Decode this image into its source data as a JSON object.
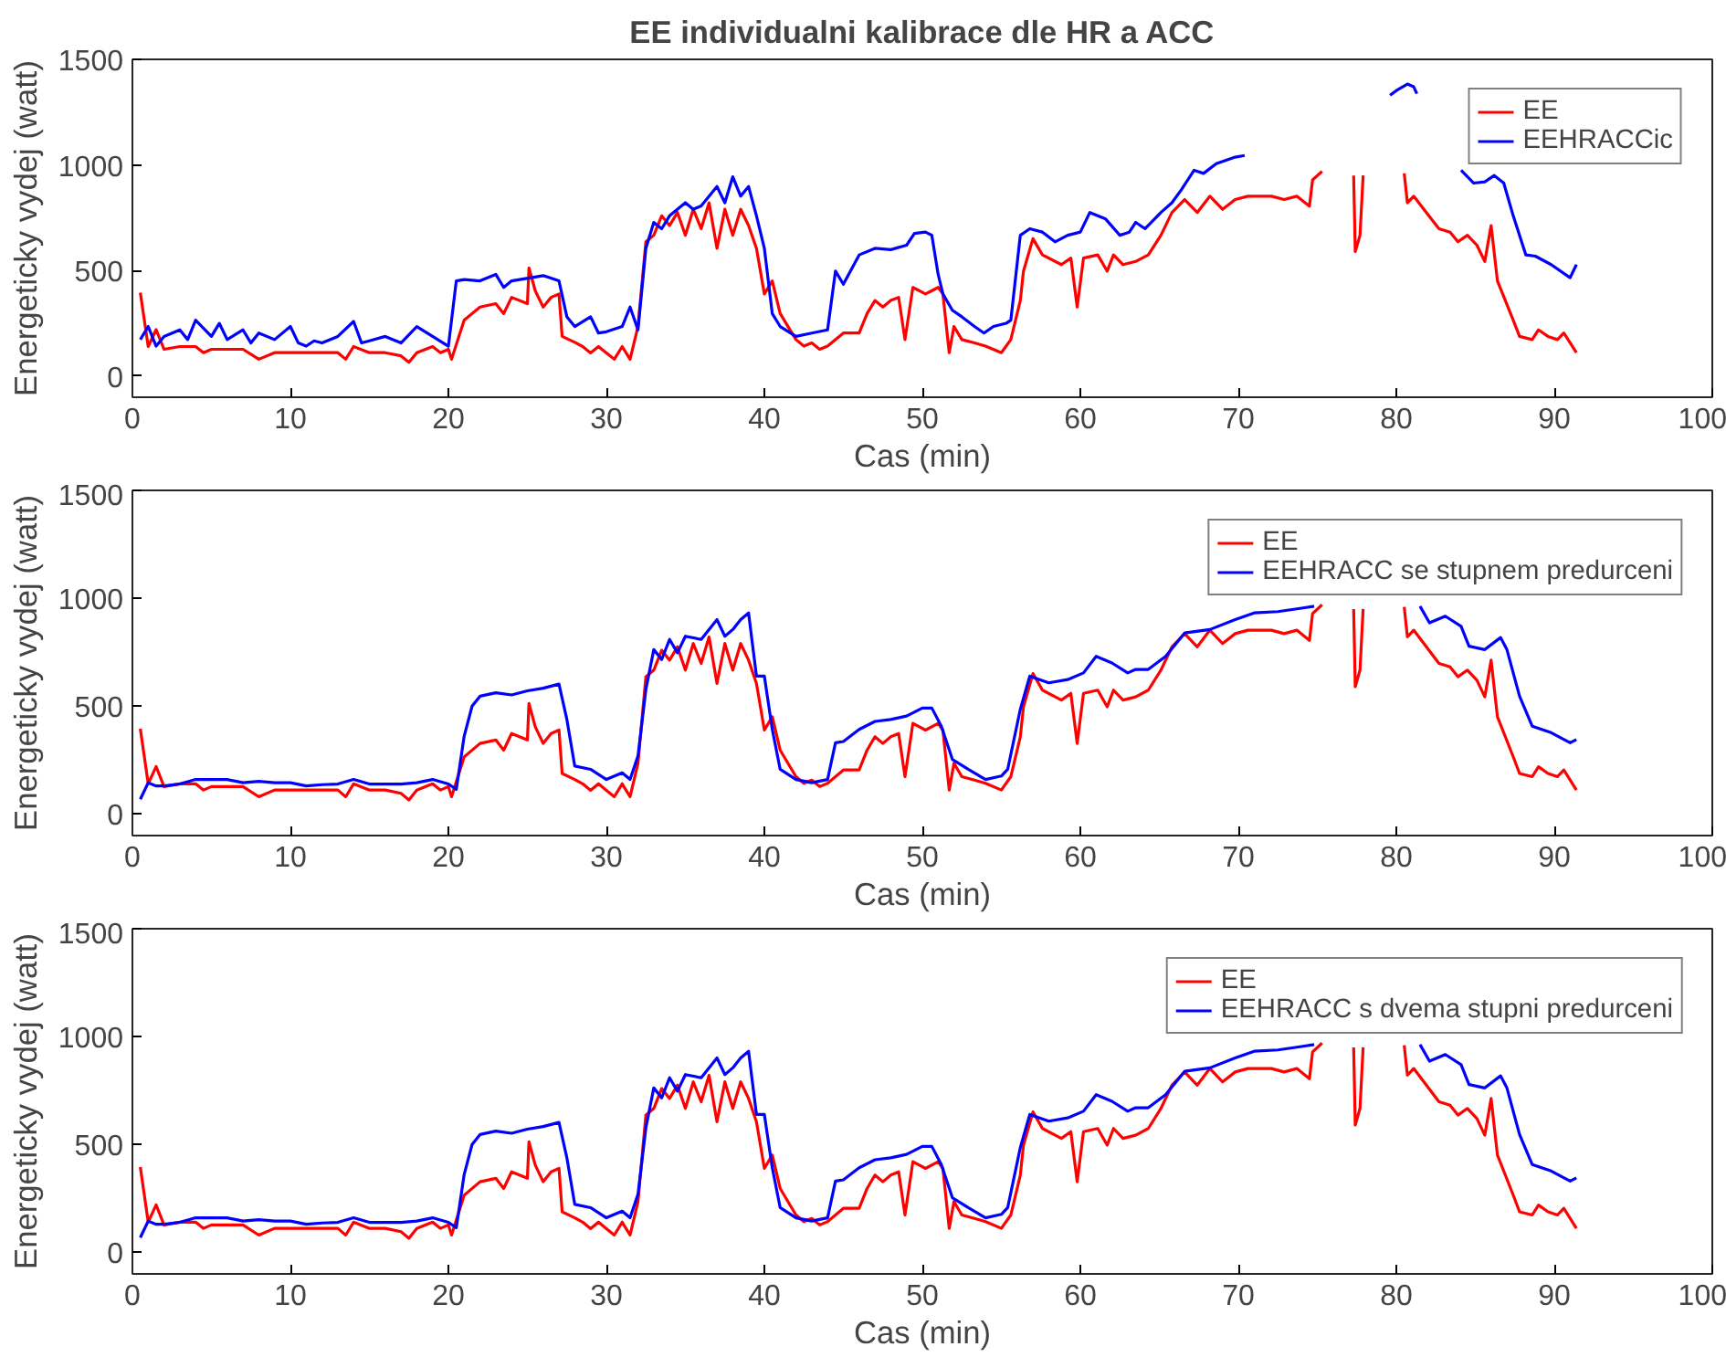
{
  "chart_data": [
    {
      "type": "line",
      "title": "EE individualni kalibrace dle HR a ACC",
      "xlabel": "Cas (min)",
      "ylabel": "Energeticky vydej (watt)",
      "xlim": [
        0,
        100
      ],
      "ylim": [
        -100,
        1500
      ],
      "xticks": [
        0,
        10,
        20,
        30,
        40,
        50,
        60,
        70,
        80,
        90,
        100
      ],
      "yticks": [
        0,
        500,
        1000,
        1500
      ],
      "legend": "top right",
      "series": [
        {
          "name": "EE",
          "color": "#ff0000",
          "x": [
            0.5,
            1,
            1.5,
            2,
            3,
            4,
            4.5,
            5,
            6,
            7,
            8,
            9,
            10,
            11,
            12,
            13,
            13.5,
            14,
            15,
            16,
            17,
            17.5,
            18,
            19,
            19.5,
            20,
            20.2,
            21,
            22,
            23,
            23.5,
            24,
            25,
            25.1,
            25.5,
            26,
            26.5,
            27,
            27.2,
            28,
            28.5,
            29,
            29.5,
            30,
            30.5,
            31,
            31.5,
            32,
            32.5,
            33,
            33.5,
            34,
            34.5,
            35,
            35.5,
            36,
            36.5,
            37,
            37.5,
            38,
            38.5,
            39,
            39.5,
            40,
            40.5,
            41,
            42,
            42.5,
            43,
            43.5,
            44,
            45,
            46,
            46.5,
            47,
            47.5,
            48,
            48.5,
            48.9,
            49.4,
            50.2,
            51,
            51.3,
            51.7,
            52,
            52.5,
            53.3,
            54,
            55,
            55.6,
            56.2,
            56.4,
            57,
            57.6,
            58.8,
            59.4,
            59.8,
            60.2,
            61.1,
            61.7,
            62.1,
            62.7,
            63.5,
            64.3,
            65.1,
            65.8,
            66.6,
            67.4,
            68.2,
            69,
            69.8,
            70.6,
            72.1,
            72.9,
            73.7,
            74.5,
            74.7,
            75.3,
            76,
            77.3,
            77.4,
            77.7,
            77.9,
            79,
            80.5,
            80.7,
            81.1,
            81.9,
            82.7,
            83.4,
            83.9,
            84.5,
            85.1,
            85.6,
            86,
            86.4,
            87.4,
            87.8,
            88.6,
            89,
            89.6,
            90.2,
            90.6,
            91.4
          ],
          "values": [
            395,
            140,
            220,
            127,
            140,
            140,
            111,
            127,
            127,
            127,
            80,
            111,
            111,
            111,
            111,
            111,
            80,
            140,
            111,
            111,
            96,
            65,
            111,
            140,
            111,
            127,
            80,
            265,
            327,
            343,
            296,
            373,
            343,
            512,
            404,
            327,
            373,
            389,
            188,
            160,
            140,
            110,
            140,
            110,
            80,
            140,
            80,
            235,
            636,
            667,
            759,
            713,
            775,
            667,
            790,
            698,
            821,
            605,
            790,
            667,
            790,
            713,
            605,
            389,
            451,
            296,
            173,
            142,
            157,
            127,
            142,
            204,
            204,
            296,
            358,
            327,
            358,
            373,
            173,
            420,
            389,
            420,
            389,
            111,
            235,
            173,
            157,
            142,
            111,
            173,
            358,
            497,
            651,
            574,
            528,
            559,
            327,
            559,
            574,
            497,
            574,
            528,
            543,
            574,
            667,
            775,
            836,
            775,
            852,
            790,
            836,
            852,
            852,
            836,
            852,
            805,
            929,
            970,
            null,
            950,
            590,
            667,
            950,
            null,
            960,
            821,
            852,
            775,
            698,
            682,
            636,
            667,
            620,
            543,
            713,
            451,
            265,
            188,
            173,
            219,
            188,
            173,
            204,
            111
          ]
        },
        {
          "name": "EEHRACCic",
          "color": "#0000ff",
          "x": [
            0.5,
            1,
            1.5,
            2,
            3,
            3.5,
            4,
            5,
            5.5,
            6,
            7,
            7.5,
            8,
            9,
            10,
            10.5,
            11,
            11.5,
            12,
            13,
            14,
            14.5,
            15,
            16,
            17,
            18,
            19,
            20,
            20.5,
            21,
            22,
            23,
            23.5,
            24,
            26,
            27,
            27.5,
            28,
            29,
            29.5,
            30,
            31,
            31.5,
            32,
            32.5,
            33,
            33.5,
            34,
            35,
            35.5,
            36,
            37,
            37.5,
            38,
            38.5,
            39,
            39.5,
            40,
            40.5,
            41,
            42,
            43,
            44,
            44.5,
            45,
            46,
            47,
            48,
            49,
            49.5,
            50.2,
            50.6,
            51,
            51.3,
            51.9,
            52.5,
            53.3,
            53.9,
            54.5,
            55.3,
            55.6,
            56.2,
            56.8,
            57.6,
            58.4,
            59.2,
            60,
            60.6,
            61.6,
            62.5,
            63.1,
            63.5,
            64.1,
            65.1,
            65.8,
            66.4,
            67.2,
            67.8,
            68.6,
            69.8,
            70.4,
            72,
            79.6,
            80,
            80.7,
            81.1,
            81.3,
            82,
            84.1,
            84.9,
            85.6,
            86.2,
            86.8,
            87.4,
            88.2,
            88.8,
            89.8,
            91,
            91.4
          ],
          "values": [
            173,
            235,
            142,
            188,
            219,
            173,
            265,
            188,
            250,
            173,
            219,
            157,
            204,
            173,
            235,
            157,
            142,
            167,
            157,
            188,
            259,
            157,
            167,
            188,
            157,
            235,
            188,
            142,
            451,
            457,
            451,
            482,
            420,
            451,
            476,
            451,
            281,
            235,
            281,
            204,
            210,
            235,
            327,
            219,
            605,
            728,
            698,
            759,
            821,
            790,
            806,
            898,
            821,
            944,
            852,
            898,
            759,
            605,
            296,
            235,
            188,
            204,
            219,
            497,
            435,
            574,
            605,
            599,
            620,
            676,
            682,
            667,
            482,
            389,
            312,
            281,
            235,
            204,
            235,
            250,
            265,
            667,
            698,
            682,
            636,
            667,
            682,
            775,
            744,
            667,
            682,
            728,
            698,
            775,
            821,
            883,
            975,
            960,
            1006,
            1037,
            1045,
            null,
            1330,
            1352,
            1383,
            1370,
            1337,
            null,
            975,
            914,
            920,
            950,
            914,
            759,
            574,
            568,
            528,
            466,
            528
          ]
        }
      ]
    },
    {
      "type": "line",
      "xlabel": "Cas (min)",
      "ylabel": "Energeticky vydej (watt)",
      "xlim": [
        0,
        100
      ],
      "ylim": [
        -100,
        1500
      ],
      "xticks": [
        0,
        10,
        20,
        30,
        40,
        50,
        60,
        70,
        80,
        90,
        100
      ],
      "yticks": [
        0,
        500,
        1000,
        1500
      ],
      "legend": "top right",
      "series": [
        {
          "name": "EE",
          "color": "#ff0000",
          "x": [
            0.5,
            1,
            1.5,
            2,
            3,
            4,
            4.5,
            5,
            6,
            7,
            8,
            9,
            10,
            11,
            12,
            13,
            13.5,
            14,
            15,
            16,
            17,
            17.5,
            18,
            19,
            19.5,
            20,
            20.2,
            21,
            22,
            23,
            23.5,
            24,
            25,
            25.1,
            25.5,
            26,
            26.5,
            27,
            27.2,
            28,
            28.5,
            29,
            29.5,
            30,
            30.5,
            31,
            31.5,
            32,
            32.5,
            33,
            33.5,
            34,
            34.5,
            35,
            35.5,
            36,
            36.5,
            37,
            37.5,
            38,
            38.5,
            39,
            39.5,
            40,
            40.5,
            41,
            42,
            42.5,
            43,
            43.5,
            44,
            45,
            46,
            46.5,
            47,
            47.5,
            48,
            48.5,
            48.9,
            49.4,
            50.2,
            51,
            51.3,
            51.7,
            52,
            52.5,
            53.3,
            54,
            55,
            55.6,
            56.2,
            56.4,
            57,
            57.6,
            58.8,
            59.4,
            59.8,
            60.2,
            61.1,
            61.7,
            62.1,
            62.7,
            63.5,
            64.3,
            65.1,
            65.8,
            66.6,
            67.4,
            68.2,
            69,
            69.8,
            70.6,
            72.1,
            72.9,
            73.7,
            74.5,
            74.7,
            75.3,
            76,
            77.3,
            77.4,
            77.7,
            77.9,
            79,
            80.5,
            80.7,
            81.1,
            81.9,
            82.7,
            83.4,
            83.9,
            84.5,
            85.1,
            85.6,
            86,
            86.4,
            87.4,
            87.8,
            88.6,
            89,
            89.6,
            90.2,
            90.6,
            91.4
          ],
          "values": [
            395,
            140,
            220,
            127,
            140,
            140,
            111,
            127,
            127,
            127,
            80,
            111,
            111,
            111,
            111,
            111,
            80,
            140,
            111,
            111,
            96,
            65,
            111,
            140,
            111,
            127,
            80,
            265,
            327,
            343,
            296,
            373,
            343,
            512,
            404,
            327,
            373,
            389,
            188,
            160,
            140,
            110,
            140,
            110,
            80,
            140,
            80,
            235,
            636,
            667,
            759,
            713,
            775,
            667,
            790,
            698,
            821,
            605,
            790,
            667,
            790,
            713,
            605,
            389,
            451,
            296,
            173,
            142,
            157,
            127,
            142,
            204,
            204,
            296,
            358,
            327,
            358,
            373,
            173,
            420,
            389,
            420,
            389,
            111,
            235,
            173,
            157,
            142,
            111,
            173,
            358,
            497,
            651,
            574,
            528,
            559,
            327,
            559,
            574,
            497,
            574,
            528,
            543,
            574,
            667,
            775,
            836,
            775,
            852,
            790,
            836,
            852,
            852,
            836,
            852,
            805,
            929,
            970,
            null,
            950,
            590,
            667,
            950,
            null,
            960,
            821,
            852,
            775,
            698,
            682,
            636,
            667,
            620,
            543,
            713,
            451,
            265,
            188,
            173,
            219,
            188,
            173,
            204,
            111
          ]
        },
        {
          "name": "EEHRACC se stupnem predurceni",
          "color": "#0000ff",
          "x": [
            0.5,
            1,
            1.5,
            2,
            3,
            4,
            5,
            6,
            7,
            8,
            9,
            10,
            11,
            12,
            13,
            14,
            15,
            16,
            17,
            18,
            19,
            20,
            20.5,
            21,
            21.5,
            22,
            23,
            24,
            25,
            26,
            27,
            27.5,
            28,
            29,
            30,
            31,
            31.5,
            32,
            32.5,
            33,
            33.5,
            34,
            34.5,
            35,
            36,
            37,
            37.5,
            38,
            38.5,
            39,
            39.5,
            40,
            40.5,
            41,
            42,
            43,
            44,
            44.5,
            45,
            46,
            47,
            48,
            49,
            50,
            50.6,
            51.2,
            51.9,
            52.9,
            54,
            55,
            55.4,
            56.2,
            56.8,
            58,
            59.2,
            60.2,
            61,
            62,
            63,
            63.5,
            64.3,
            65.4,
            66.6,
            68.2,
            69.8,
            71,
            72.5,
            74,
            74.8,
            78,
            81.5,
            82.1,
            83.1,
            84.1,
            84.6,
            85.6,
            86.6,
            87,
            87.8,
            88.6,
            89.8,
            91,
            91.4
          ],
          "values": [
            68,
            145,
            130,
            130,
            139,
            160,
            160,
            160,
            145,
            151,
            145,
            145,
            130,
            136,
            139,
            160,
            139,
            139,
            139,
            145,
            160,
            139,
            114,
            361,
            500,
            546,
            562,
            552,
            571,
            583,
            602,
            438,
            222,
            207,
            160,
            191,
            160,
            269,
            577,
            762,
            716,
            809,
            747,
            824,
            809,
            901,
            824,
            855,
            901,
            932,
            639,
            639,
            392,
            207,
            160,
            145,
            160,
            330,
            336,
            392,
            429,
            438,
            454,
            491,
            491,
            407,
            253,
            207,
            160,
            176,
            207,
            485,
            639,
            608,
            623,
            654,
            731,
            700,
            654,
            670,
            670,
            731,
            839,
            855,
            901,
            932,
            938,
            954,
            963,
            null,
            963,
            886,
            917,
            870,
            778,
            762,
            818,
            762,
            546,
            407,
            377,
            330,
            345
          ]
        }
      ]
    },
    {
      "type": "line",
      "xlabel": "Cas (min)",
      "ylabel": "Energeticky vydej (watt)",
      "xlim": [
        0,
        100
      ],
      "ylim": [
        -100,
        1500
      ],
      "xticks": [
        0,
        10,
        20,
        30,
        40,
        50,
        60,
        70,
        80,
        90,
        100
      ],
      "yticks": [
        0,
        500,
        1000,
        1500
      ],
      "legend": "top right",
      "series": [
        {
          "name": "EE",
          "color": "#ff0000",
          "x": [
            0.5,
            1,
            1.5,
            2,
            3,
            4,
            4.5,
            5,
            6,
            7,
            8,
            9,
            10,
            11,
            12,
            13,
            13.5,
            14,
            15,
            16,
            17,
            17.5,
            18,
            19,
            19.5,
            20,
            20.2,
            21,
            22,
            23,
            23.5,
            24,
            25,
            25.1,
            25.5,
            26,
            26.5,
            27,
            27.2,
            28,
            28.5,
            29,
            29.5,
            30,
            30.5,
            31,
            31.5,
            32,
            32.5,
            33,
            33.5,
            34,
            34.5,
            35,
            35.5,
            36,
            36.5,
            37,
            37.5,
            38,
            38.5,
            39,
            39.5,
            40,
            40.5,
            41,
            42,
            42.5,
            43,
            43.5,
            44,
            45,
            46,
            46.5,
            47,
            47.5,
            48,
            48.5,
            48.9,
            49.4,
            50.2,
            51,
            51.3,
            51.7,
            52,
            52.5,
            53.3,
            54,
            55,
            55.6,
            56.2,
            56.4,
            57,
            57.6,
            58.8,
            59.4,
            59.8,
            60.2,
            61.1,
            61.7,
            62.1,
            62.7,
            63.5,
            64.3,
            65.1,
            65.8,
            66.6,
            67.4,
            68.2,
            69,
            69.8,
            70.6,
            72.1,
            72.9,
            73.7,
            74.5,
            74.7,
            75.3,
            76,
            77.3,
            77.4,
            77.7,
            77.9,
            79,
            80.5,
            80.7,
            81.1,
            81.9,
            82.7,
            83.4,
            83.9,
            84.5,
            85.1,
            85.6,
            86,
            86.4,
            87.4,
            87.8,
            88.6,
            89,
            89.6,
            90.2,
            90.6,
            91.4
          ],
          "values": [
            395,
            140,
            220,
            127,
            140,
            140,
            111,
            127,
            127,
            127,
            80,
            111,
            111,
            111,
            111,
            111,
            80,
            140,
            111,
            111,
            96,
            65,
            111,
            140,
            111,
            127,
            80,
            265,
            327,
            343,
            296,
            373,
            343,
            512,
            404,
            327,
            373,
            389,
            188,
            160,
            140,
            110,
            140,
            110,
            80,
            140,
            80,
            235,
            636,
            667,
            759,
            713,
            775,
            667,
            790,
            698,
            821,
            605,
            790,
            667,
            790,
            713,
            605,
            389,
            451,
            296,
            173,
            142,
            157,
            127,
            142,
            204,
            204,
            296,
            358,
            327,
            358,
            373,
            173,
            420,
            389,
            420,
            389,
            111,
            235,
            173,
            157,
            142,
            111,
            173,
            358,
            497,
            651,
            574,
            528,
            559,
            327,
            559,
            574,
            497,
            574,
            528,
            543,
            574,
            667,
            775,
            836,
            775,
            852,
            790,
            836,
            852,
            852,
            836,
            852,
            805,
            929,
            970,
            null,
            950,
            590,
            667,
            950,
            null,
            960,
            821,
            852,
            775,
            698,
            682,
            636,
            667,
            620,
            543,
            713,
            451,
            265,
            188,
            173,
            219,
            188,
            173,
            204,
            111
          ]
        },
        {
          "name": "EEHRACC s dvema stupni predurceni",
          "color": "#0000ff",
          "x": [
            0.5,
            1,
            1.5,
            2,
            3,
            4,
            5,
            6,
            7,
            8,
            9,
            10,
            11,
            12,
            13,
            14,
            15,
            16,
            17,
            18,
            19,
            20,
            20.5,
            21,
            21.5,
            22,
            23,
            24,
            25,
            26,
            27,
            27.5,
            28,
            29,
            30,
            31,
            31.5,
            32,
            32.5,
            33,
            33.5,
            34,
            34.5,
            35,
            36,
            37,
            37.5,
            38,
            38.5,
            39,
            39.5,
            40,
            40.5,
            41,
            42,
            43,
            44,
            44.5,
            45,
            46,
            47,
            48,
            49,
            50,
            50.6,
            51.2,
            51.9,
            52.9,
            54,
            55,
            55.4,
            56.2,
            56.8,
            58,
            59.2,
            60.2,
            61,
            62,
            63,
            63.5,
            64.3,
            65.4,
            66.6,
            68.2,
            69.8,
            71,
            72.5,
            74,
            74.8,
            78,
            81.5,
            82.1,
            83.1,
            84.1,
            84.6,
            85.6,
            86.6,
            87,
            87.8,
            88.6,
            89.8,
            91,
            91.4
          ],
          "values": [
            68,
            145,
            130,
            130,
            139,
            160,
            160,
            160,
            145,
            151,
            145,
            145,
            130,
            136,
            139,
            160,
            139,
            139,
            139,
            145,
            160,
            139,
            114,
            361,
            500,
            546,
            562,
            552,
            571,
            583,
            602,
            438,
            222,
            207,
            160,
            191,
            160,
            269,
            577,
            762,
            716,
            809,
            747,
            824,
            809,
            901,
            824,
            855,
            901,
            932,
            639,
            639,
            392,
            207,
            160,
            145,
            160,
            330,
            336,
            392,
            429,
            438,
            454,
            491,
            491,
            407,
            253,
            207,
            160,
            176,
            207,
            485,
            639,
            608,
            623,
            654,
            731,
            700,
            654,
            670,
            670,
            731,
            839,
            855,
            901,
            932,
            938,
            954,
            963,
            null,
            963,
            886,
            917,
            870,
            778,
            762,
            818,
            762,
            546,
            407,
            377,
            330,
            345
          ]
        }
      ]
    }
  ]
}
